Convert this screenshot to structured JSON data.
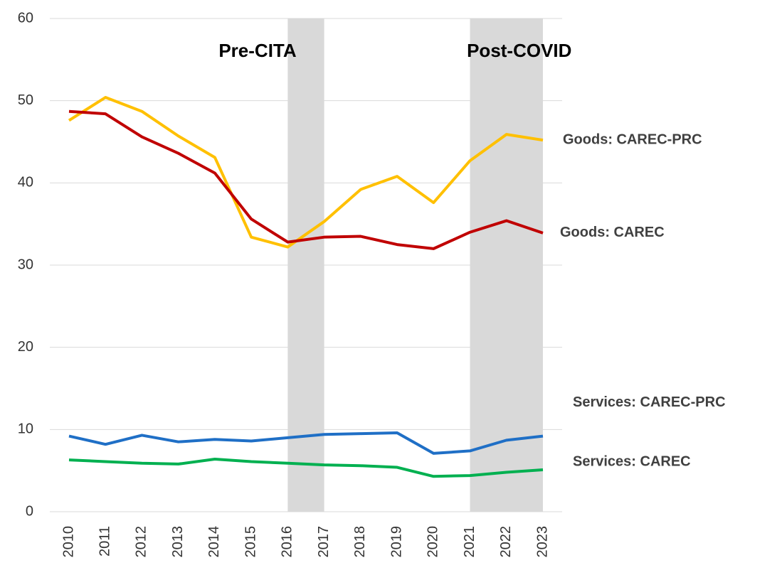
{
  "chart_data": {
    "type": "line",
    "x": [
      2010,
      2011,
      2012,
      2013,
      2014,
      2015,
      2016,
      2017,
      2018,
      2019,
      2020,
      2021,
      2022,
      2023
    ],
    "xlim": [
      2010,
      2023
    ],
    "ylim": [
      0,
      60
    ],
    "yticks": [
      0,
      10,
      20,
      30,
      40,
      50,
      60
    ],
    "grid": true,
    "shaded_regions": [
      {
        "start": 2016,
        "end": 2017,
        "label": "Pre-CITA",
        "color": "#d9d9d9"
      },
      {
        "start": 2021,
        "end": 2023,
        "label": "Post-COVID",
        "color": "#d9d9d9"
      }
    ],
    "series": [
      {
        "name": "Goods: CAREC-PRC",
        "color": "#ffc000",
        "values": [
          47.6,
          50.4,
          48.7,
          45.7,
          43.1,
          33.4,
          32.2,
          35.3,
          39.2,
          40.8,
          37.6,
          42.7,
          45.9,
          45.2
        ]
      },
      {
        "name": "Goods: CAREC",
        "color": "#c00000",
        "values": [
          48.7,
          48.4,
          45.6,
          43.6,
          41.2,
          35.6,
          32.8,
          33.4,
          33.5,
          32.5,
          32.0,
          34.0,
          35.4,
          33.9
        ]
      },
      {
        "name": "Services: CAREC-PRC",
        "color": "#1f6fc6",
        "values": [
          9.2,
          8.2,
          9.3,
          8.5,
          8.8,
          8.6,
          9.0,
          9.4,
          9.5,
          9.6,
          7.1,
          7.4,
          8.7,
          9.2
        ]
      },
      {
        "name": "Services: CAREC",
        "color": "#00b050",
        "values": [
          6.3,
          6.1,
          5.9,
          5.8,
          6.4,
          6.1,
          5.9,
          5.7,
          5.6,
          5.4,
          4.3,
          4.4,
          4.8,
          5.1
        ]
      }
    ]
  }
}
